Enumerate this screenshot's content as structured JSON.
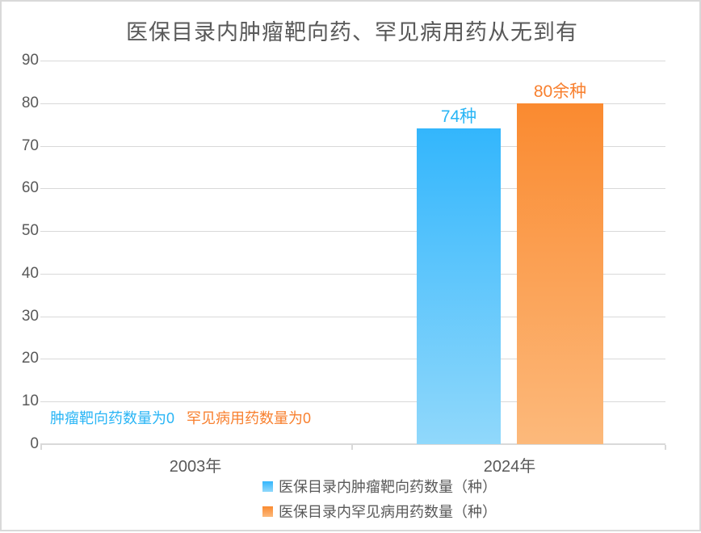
{
  "title": "医保目录内肿瘤靶向药、罕见病用药从无到有",
  "chart_data": {
    "type": "bar",
    "categories": [
      "2003年",
      "2024年"
    ],
    "series": [
      {
        "name": "医保目录内肿瘤靶向药数量（种）",
        "values": [
          0,
          74
        ],
        "value_label": "74种",
        "zero_annotation": "肿瘤靶向药数量为0",
        "color_top": "#33b6fc",
        "color_bottom": "#90d8fb",
        "label_color": "#29b5f5"
      },
      {
        "name": "医保目录内罕见病用药数量（种）",
        "values": [
          0,
          80
        ],
        "value_label": "80余种",
        "zero_annotation": "罕见病用药数量为0",
        "color_top": "#fa8a30",
        "color_bottom": "#fcb97b",
        "label_color": "#f8802f"
      }
    ],
    "ylim": [
      0,
      90
    ],
    "yticks": [
      0,
      10,
      20,
      30,
      40,
      50,
      60,
      70,
      80,
      90
    ],
    "xlabel": "",
    "ylabel": "",
    "grid": true,
    "legend_position": "bottom",
    "colors": {
      "grid": "#d9d9d9",
      "axis_text": "#595959",
      "title_text": "#595959",
      "frame_border": "#d9d9d9"
    }
  }
}
